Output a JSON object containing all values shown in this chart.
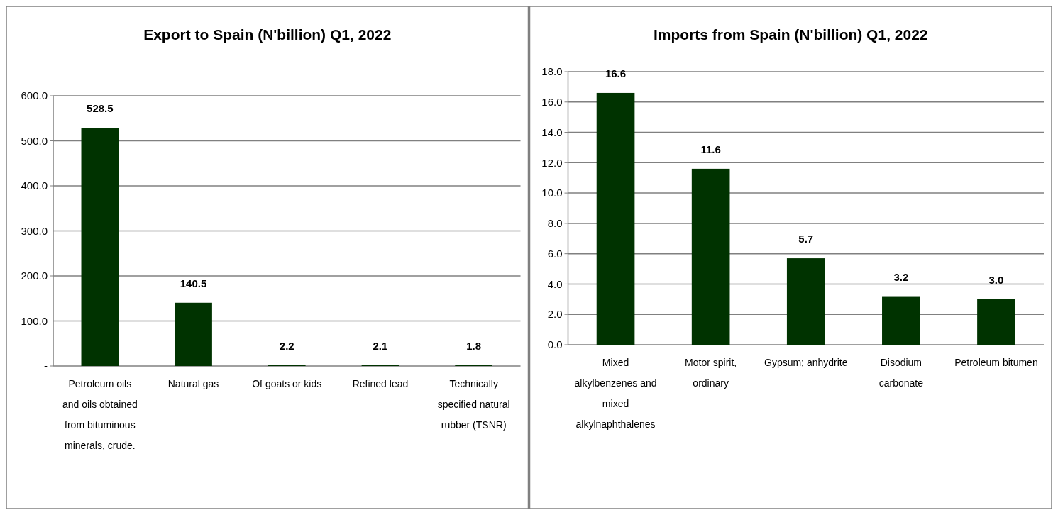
{
  "chart_data": [
    {
      "type": "bar",
      "title": "Export to Spain (N'billion) Q1, 2022",
      "categories": [
        "Petroleum oils and oils obtained from bituminous minerals, crude.",
        "Natural gas",
        "Of goats or kids",
        "Refined lead",
        "Technically specified natural rubber (TSNR)"
      ],
      "values": [
        528.5,
        140.5,
        2.2,
        2.1,
        1.8
      ],
      "value_labels": [
        "528.5",
        "140.5",
        "2.2",
        "2.1",
        "1.8"
      ],
      "color": "#003300",
      "ylim": [
        0,
        600
      ],
      "yticks": [
        {
          "value": 0,
          "label": "-"
        },
        {
          "value": 100,
          "label": "100.0"
        },
        {
          "value": 200,
          "label": "200.0"
        },
        {
          "value": 300,
          "label": "300.0"
        },
        {
          "value": 400,
          "label": "400.0"
        },
        {
          "value": 500,
          "label": "500.0"
        },
        {
          "value": 600,
          "label": "600.0"
        }
      ],
      "grid": true
    },
    {
      "type": "bar",
      "title": "Imports from Spain (N'billion) Q1, 2022",
      "categories": [
        "Mixed alkylbenzenes and mixed alkylnaphthalenes",
        "Motor spirit, ordinary",
        "Gypsum; anhydrite",
        "Disodium carbonate",
        "Petroleum bitumen"
      ],
      "values": [
        16.6,
        11.6,
        5.7,
        3.2,
        3.0
      ],
      "value_labels": [
        "16.6",
        "11.6",
        "5.7",
        "3.2",
        "3.0"
      ],
      "color": "#003300",
      "ylim": [
        0,
        18
      ],
      "yticks": [
        {
          "value": 0,
          "label": "0.0"
        },
        {
          "value": 2,
          "label": "2.0"
        },
        {
          "value": 4,
          "label": "4.0"
        },
        {
          "value": 6,
          "label": "6.0"
        },
        {
          "value": 8,
          "label": "8.0"
        },
        {
          "value": 10,
          "label": "10.0"
        },
        {
          "value": 12,
          "label": "12.0"
        },
        {
          "value": 14,
          "label": "14.0"
        },
        {
          "value": 16,
          "label": "16.0"
        },
        {
          "value": 18,
          "label": "18.0"
        }
      ],
      "grid": true
    }
  ]
}
